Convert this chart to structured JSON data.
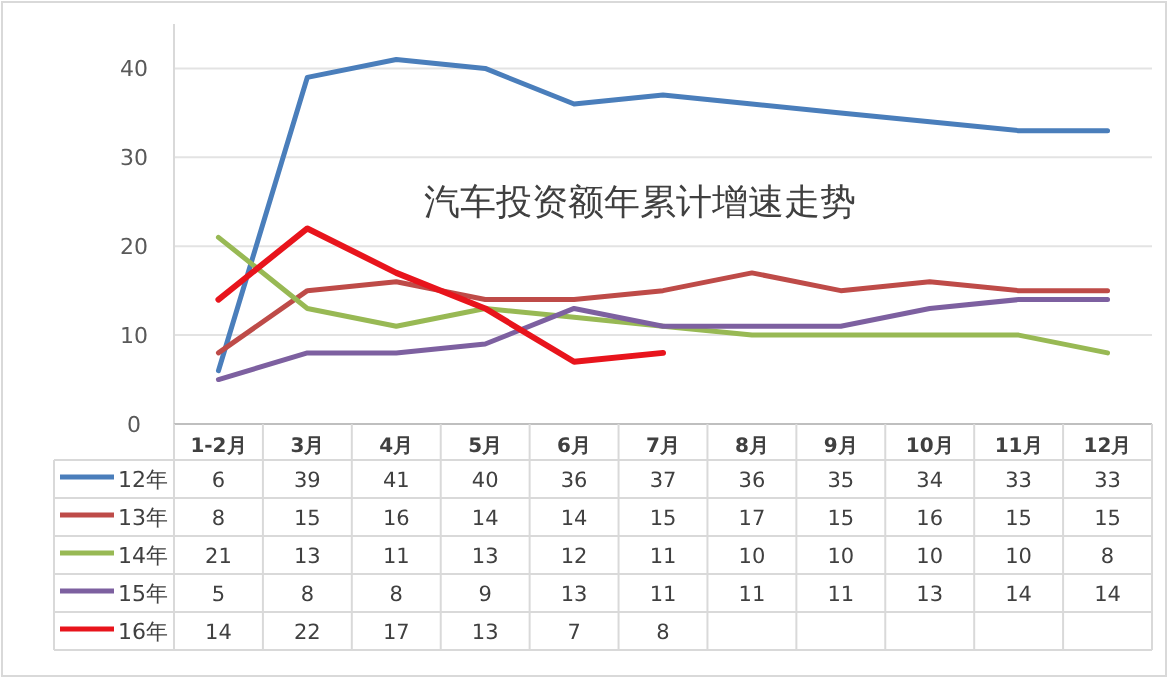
{
  "chart_data": {
    "type": "line",
    "title": "汽车投资额年累计增速走势",
    "categories": [
      "1-2月",
      "3月",
      "4月",
      "5月",
      "6月",
      "7月",
      "8月",
      "9月",
      "10月",
      "11月",
      "12月"
    ],
    "series": [
      {
        "name": "12年",
        "color": "#4a7ebb",
        "values": [
          6,
          39,
          41,
          40,
          36,
          37,
          36,
          35,
          34,
          33,
          33
        ]
      },
      {
        "name": "13年",
        "color": "#be4b48",
        "values": [
          8,
          15,
          16,
          14,
          14,
          15,
          17,
          15,
          16,
          15,
          15
        ]
      },
      {
        "name": "14年",
        "color": "#98b954",
        "values": [
          21,
          13,
          11,
          13,
          12,
          11,
          10,
          10,
          10,
          10,
          8
        ]
      },
      {
        "name": "15年",
        "color": "#7d60a0",
        "values": [
          5,
          8,
          8,
          9,
          13,
          11,
          11,
          11,
          13,
          14,
          14
        ]
      },
      {
        "name": "16年",
        "color": "#e8141c",
        "values": [
          14,
          22,
          17,
          13,
          7,
          8,
          null,
          null,
          null,
          null,
          null
        ]
      }
    ],
    "ylim": [
      0,
      45
    ],
    "yticks": [
      0,
      10,
      20,
      30,
      40
    ],
    "grid": "y",
    "legend": "bottom",
    "data_labels": true,
    "marker": "none",
    "line_style": "solid"
  }
}
